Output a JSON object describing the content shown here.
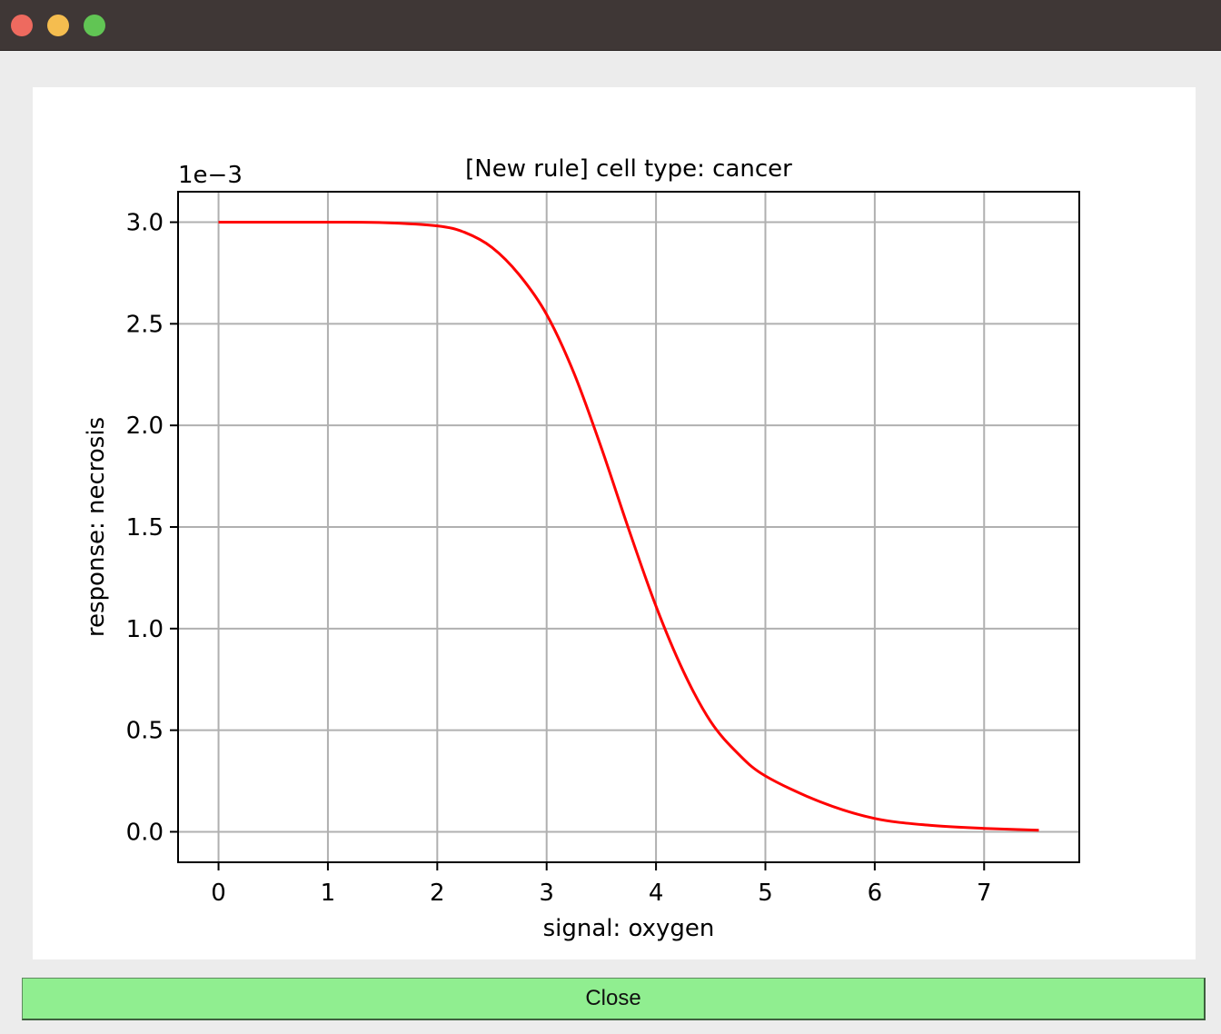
{
  "window": {
    "controls": {
      "close_color": "#ee6a5f",
      "minimize_color": "#f5bd4f",
      "maximize_color": "#61c554"
    }
  },
  "close_button": {
    "label": "Close",
    "color": "#90ee90"
  },
  "chart_data": {
    "type": "line",
    "title": "[New rule] cell type: cancer",
    "xlabel": "signal: oxygen",
    "ylabel": "response: necrosis",
    "y_scale_label": "1e−3",
    "xlim": [
      -0.37,
      7.87
    ],
    "ylim": [
      -0.00015,
      0.00315
    ],
    "x_ticks": [
      0,
      1,
      2,
      3,
      4,
      5,
      6,
      7
    ],
    "x_tick_labels": [
      "0",
      "1",
      "2",
      "3",
      "4",
      "5",
      "6",
      "7"
    ],
    "y_ticks": [
      0,
      0.0005,
      0.001,
      0.0015,
      0.002,
      0.0025,
      0.003
    ],
    "y_tick_labels": [
      "0.0",
      "0.5",
      "1.0",
      "1.5",
      "2.0",
      "2.5",
      "3.0"
    ],
    "grid": true,
    "series": [
      {
        "color": "#ff0000",
        "x": [
          0,
          0.5,
          1.0,
          1.5,
          2.0,
          2.25,
          2.5,
          2.75,
          3.0,
          3.25,
          3.5,
          3.75,
          4.0,
          4.25,
          4.5,
          4.75,
          5.0,
          5.5,
          6.0,
          6.5,
          7.0,
          7.5
        ],
        "y": [
          0.003,
          0.003,
          0.003,
          0.002998,
          0.002982,
          0.00295,
          0.002876,
          0.002741,
          0.002546,
          0.002257,
          0.00189,
          0.00149,
          0.00111,
          0.00079,
          0.000542,
          0.000385,
          0.000275,
          0.000148,
          6.55e-05,
          3.2e-05,
          1.7e-05,
          8e-06
        ]
      }
    ]
  }
}
